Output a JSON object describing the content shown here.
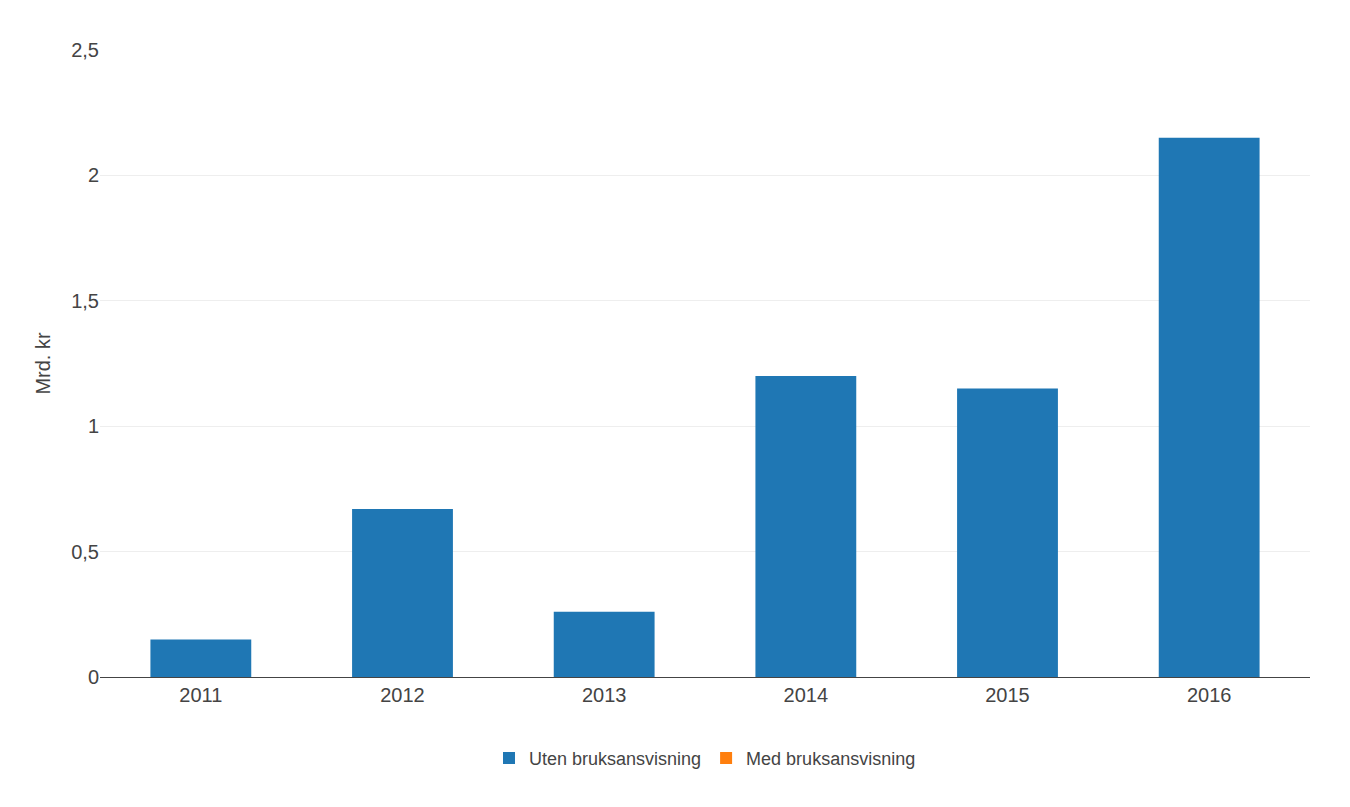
{
  "chart_data": {
    "type": "bar",
    "ylabel": "Mrd. kr",
    "categories": [
      "2011",
      "2012",
      "2013",
      "2014",
      "2015",
      "2016"
    ],
    "series": [
      {
        "name": "Uten bruksansvisning",
        "values": [
          0.15,
          0.67,
          0.26,
          1.2,
          1.15,
          2.15
        ]
      },
      {
        "name": "Med bruksansvisning",
        "values": [
          null,
          null,
          null,
          null,
          null,
          null
        ]
      }
    ],
    "ylim": [
      0,
      2.5
    ],
    "yticks": [
      0,
      {
        "value": 0.5,
        "label": "0,5"
      },
      1,
      {
        "value": 1.5,
        "label": "1,5"
      },
      2,
      {
        "value": 2.5,
        "label": "2,5"
      }
    ],
    "grid": true,
    "legend": "bottom"
  }
}
